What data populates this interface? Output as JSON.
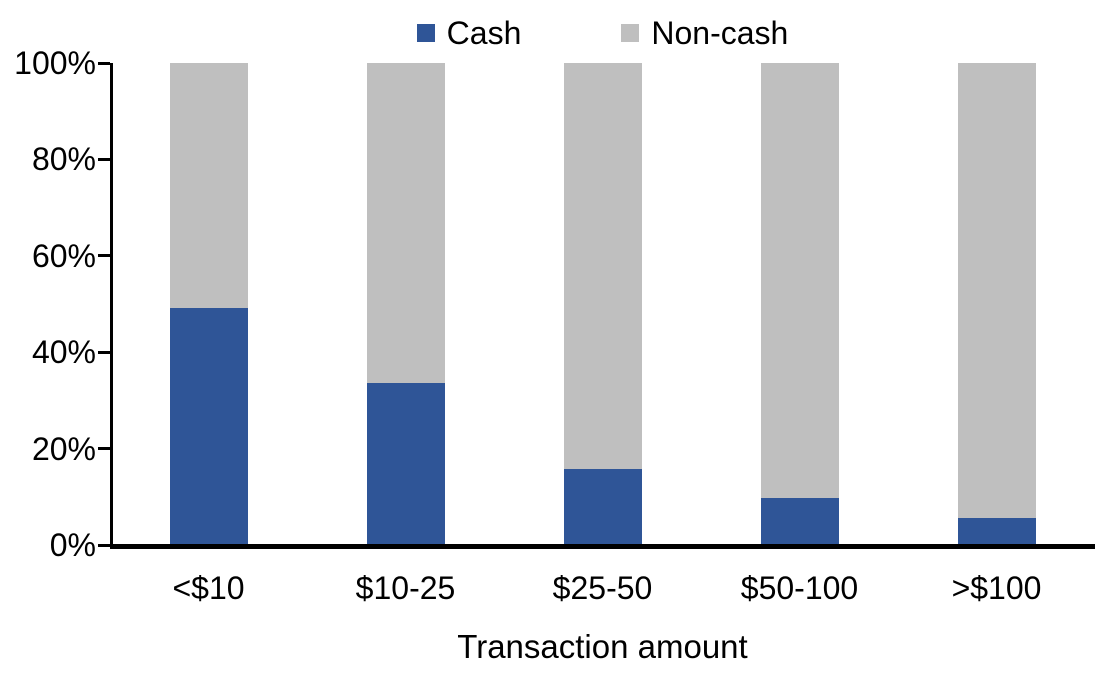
{
  "chart_data": {
    "type": "bar",
    "variant": "stacked-100-percent-column",
    "title": "",
    "xlabel": "Transaction amount",
    "ylabel": "",
    "categories": [
      "<$10",
      "$10-25",
      "$25-50",
      "$50-100",
      ">$100"
    ],
    "series": [
      {
        "name": "Cash",
        "color": "#2F5597",
        "values": [
          49,
          33.5,
          15.5,
          9.5,
          5.5
        ]
      },
      {
        "name": "Non-cash",
        "color": "#BFBFBF",
        "values": [
          51,
          66.5,
          84.5,
          90.5,
          94.5
        ]
      }
    ],
    "ylim": [
      0,
      100
    ],
    "ytick_values": [
      0,
      20,
      40,
      60,
      80,
      100
    ],
    "ytick_labels": [
      "0%",
      "20%",
      "40%",
      "60%",
      "80%",
      "100%"
    ],
    "grid": false,
    "legend_position": "top-center",
    "axis_color": "#000000",
    "text_color": "#000000",
    "background_color": "#FFFFFF"
  }
}
